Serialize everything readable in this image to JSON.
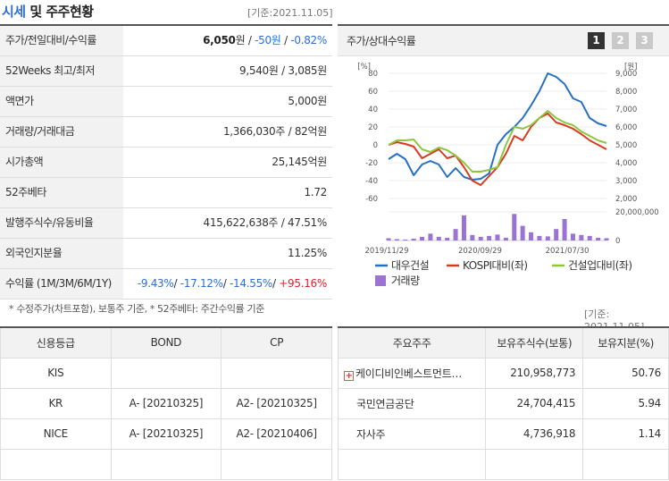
{
  "header": {
    "title_accent": "시세",
    "title_rest": "및 주주현황",
    "date": "[기준:2021.11.05]"
  },
  "stats": [
    {
      "label": "주가/전일대비/수익률",
      "price": "6,050",
      "unit": "원",
      "change": "-50원",
      "rate": "-0.82%"
    },
    {
      "label": "52Weeks 최고/최저",
      "value": "9,540원 / 3,085원"
    },
    {
      "label": "액면가",
      "value": "5,000원"
    },
    {
      "label": "거래량/거래대금",
      "value": "1,366,030주 / 82억원"
    },
    {
      "label": "시가총액",
      "value": "25,145억원"
    },
    {
      "label": "52주베타",
      "value": "1.72"
    },
    {
      "label": "발행주식수/유동비율",
      "value": "415,622,638주 / 47.51%"
    },
    {
      "label": "외국인지분율",
      "value": "11.25%"
    },
    {
      "label": "수익률 (1M/3M/6M/1Y)",
      "r1": "-9.43%",
      "r2": "-17.12%",
      "r3": "-14.55%",
      "r4": "+95.16%"
    }
  ],
  "footnote": "* 수정주가(차트포함), 보통주 기준, * 52주베타: 주간수익률 기준",
  "chart": {
    "title": "주가/상대수익률",
    "pages": [
      "1",
      "2",
      "3"
    ]
  },
  "chart_data": {
    "type": "line",
    "title": "주가/상대수익률",
    "left_axis_unit": "[%]",
    "right_axis_unit": "[원]",
    "left_ticks": [
      "80",
      "60",
      "40",
      "20",
      "0",
      "-20",
      "-40",
      "-60"
    ],
    "right_ticks": [
      "9,000",
      "8,000",
      "7,000",
      "6,000",
      "5,000",
      "4,000",
      "3,000",
      "2,000"
    ],
    "volume_ticks": [
      "20,000,000",
      "0"
    ],
    "x_ticks": [
      "2019/11/29",
      "2020/09/29",
      "2021/07/30"
    ],
    "left_range": [
      -60,
      80
    ],
    "right_range": [
      2000,
      9000
    ],
    "series": [
      {
        "name": "대우건설",
        "axis": "right",
        "color": "#2670c4",
        "values": [
          4200,
          4500,
          4200,
          3300,
          3900,
          4100,
          3900,
          3200,
          3700,
          3200,
          3050,
          3100,
          3400,
          5000,
          5600,
          6000,
          6500,
          7200,
          8000,
          9000,
          8800,
          8400,
          7600,
          7400,
          6500,
          6200,
          6050
        ]
      },
      {
        "name": "KOSPI대비(좌)",
        "color": "#d73b1f",
        "values": [
          0,
          3,
          1,
          -2,
          -15,
          -10,
          -5,
          -15,
          -12,
          -25,
          -40,
          -45,
          -35,
          -25,
          -10,
          10,
          5,
          20,
          30,
          35,
          25,
          22,
          18,
          12,
          5,
          0,
          -5
        ]
      },
      {
        "name": "건설업대비(좌)",
        "color": "#8cc63f",
        "values": [
          0,
          5,
          5,
          6,
          -5,
          -8,
          -3,
          -6,
          -12,
          -20,
          -30,
          -30,
          -28,
          -25,
          0,
          20,
          18,
          22,
          30,
          38,
          30,
          25,
          22,
          15,
          10,
          5,
          2
        ]
      }
    ],
    "volume": {
      "name": "거래량",
      "color": "#9b73d2",
      "values": [
        0.5,
        0.3,
        0.2,
        0.4,
        0.8,
        1.5,
        0.8,
        0.6,
        2.5,
        5.5,
        1.2,
        0.8,
        1.0,
        1.3,
        0.6,
        5.8,
        3.2,
        1.8,
        1.0,
        0.9,
        2.5,
        4.7,
        1.5,
        1.2,
        1.0,
        0.6,
        0.5
      ],
      "max": 20
    }
  },
  "credit": {
    "headers": [
      "신용등급",
      "BOND",
      "CP"
    ],
    "rows": [
      [
        "KIS",
        "",
        ""
      ],
      [
        "KR",
        "A- [20210325]",
        "A2- [20210325]"
      ],
      [
        "NICE",
        "A- [20210325]",
        "A2- [20210406]"
      ],
      [
        "",
        "",
        ""
      ]
    ]
  },
  "holders": {
    "date": "[기준: 2021.11.05]",
    "headers": [
      "주요주주",
      "보유주식수(보통)",
      "보유지분(%)"
    ],
    "rows": [
      {
        "name": "케이디비인베스트먼트…",
        "shares": "210,958,773",
        "pct": "50.76",
        "icon": "plus-icon"
      },
      {
        "name": "국민연금공단",
        "shares": "24,704,415",
        "pct": "5.94"
      },
      {
        "name": "자사주",
        "shares": "4,736,918",
        "pct": "1.14"
      },
      {
        "name": "",
        "shares": "",
        "pct": ""
      }
    ]
  }
}
